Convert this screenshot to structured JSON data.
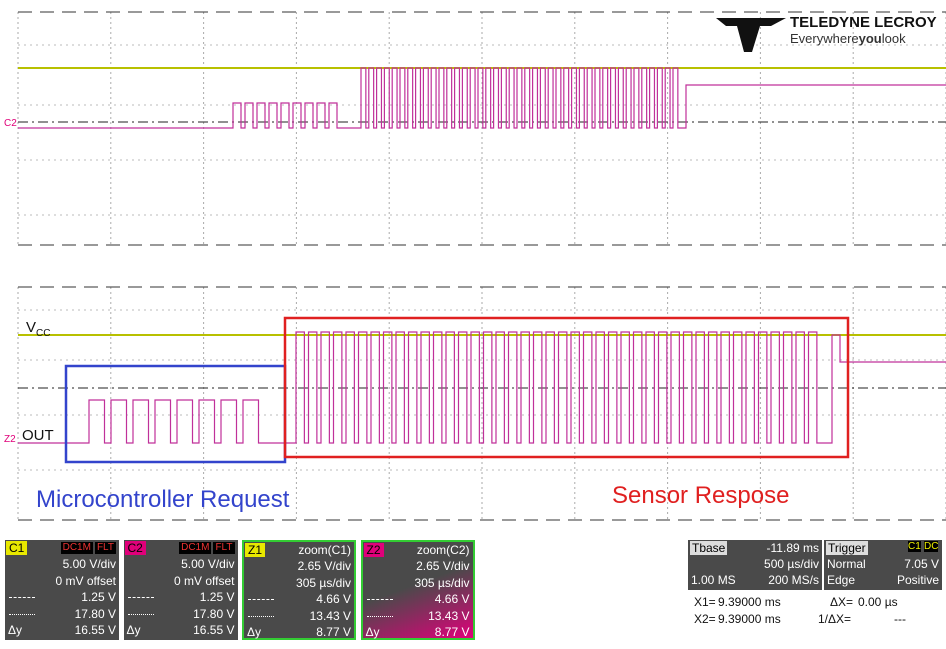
{
  "logo": {
    "brand": "TELEDYNE LECROY",
    "tagline_pre": "Everywhere",
    "tagline_bold": "you",
    "tagline_post": "look"
  },
  "traces": {
    "top_label": "C2",
    "bottom_label": "Z2",
    "vcc_main": "V",
    "vcc_sub": "CC",
    "out": "OUT"
  },
  "annotations": {
    "request": "Microcontroller Request",
    "response": "Sensor Respose"
  },
  "channels": [
    {
      "name": "C1",
      "color": "#e8e800",
      "tags": [
        "FLT",
        "DC1M"
      ],
      "rows": [
        {
          "value": "5.00 V/div"
        },
        {
          "value": "0 mV offset"
        },
        {
          "value": "1.25 V"
        },
        {
          "value": "17.80 V"
        },
        {
          "label": "Δy",
          "value": "16.55 V"
        }
      ]
    },
    {
      "name": "C2",
      "color": "#e0007a",
      "tags": [
        "FLT",
        "DC1M"
      ],
      "rows": [
        {
          "value": "5.00 V/div"
        },
        {
          "value": "0 mV offset"
        },
        {
          "value": "1.25 V"
        },
        {
          "value": "17.80 V"
        },
        {
          "label": "Δy",
          "value": "16.55 V"
        }
      ]
    },
    {
      "name": "Z1",
      "color": "#e8e800",
      "source": "zoom(C1)",
      "rows": [
        {
          "value": "2.65 V/div"
        },
        {
          "value": "305 µs/div"
        },
        {
          "value": "4.66 V"
        },
        {
          "value": "13.43 V"
        },
        {
          "label": "Δy",
          "value": "8.77 V"
        }
      ]
    },
    {
      "name": "Z2",
      "color": "#e0007a",
      "source": "zoom(C2)",
      "rows": [
        {
          "value": "2.65 V/div"
        },
        {
          "value": "305 µs/div"
        },
        {
          "value": "4.66 V"
        },
        {
          "value": "13.43 V"
        },
        {
          "label": "Δy",
          "value": "8.77 V"
        }
      ]
    }
  ],
  "timebase": {
    "label": "Tbase",
    "delay": "-11.89 ms",
    "scale": "500 µs/div",
    "samples": "1.00 MS",
    "rate": "200 MS/s"
  },
  "trigger": {
    "label": "Trigger",
    "source": "C1",
    "coupling": "DC",
    "mode": "Normal",
    "level": "7.05 V",
    "type": "Edge",
    "slope": "Positive"
  },
  "cursors": {
    "x1_label": "X1=",
    "x1": "9.39000 ms",
    "dx_label": "ΔX=",
    "dx": "0.00 µs",
    "x2_label": "X2=",
    "x2": "9.39000 ms",
    "inv_label": "1/ΔX=",
    "inv": "---"
  }
}
